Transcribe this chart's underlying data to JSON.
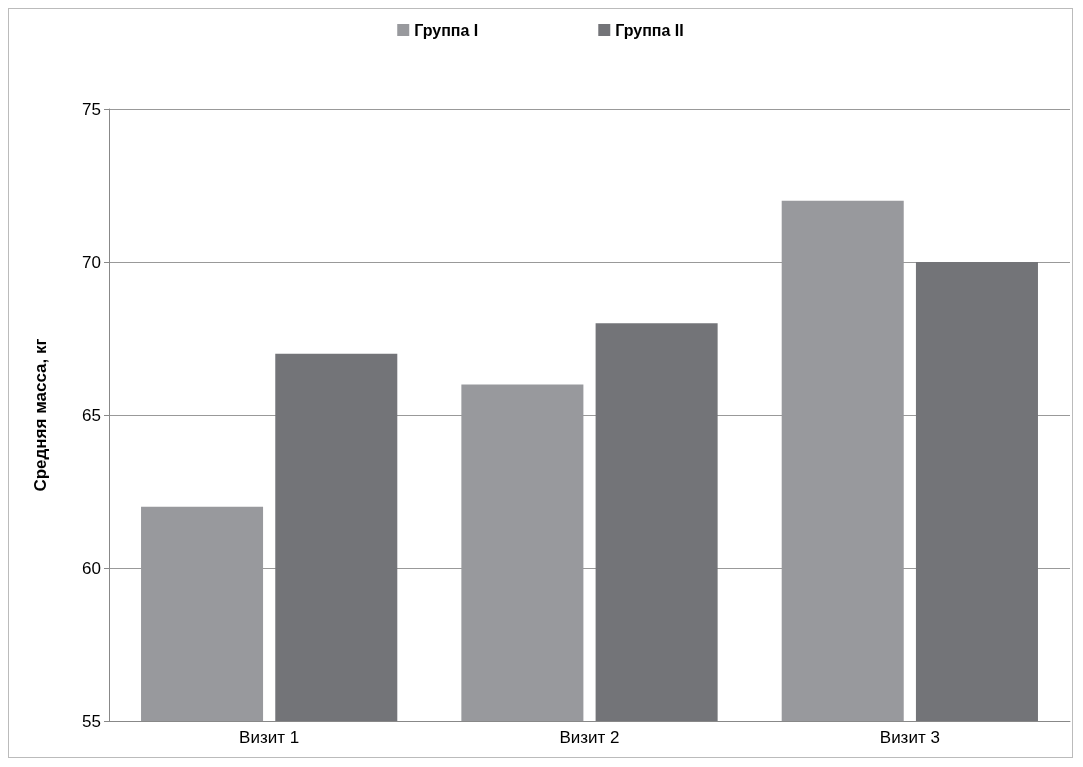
{
  "chart_data": {
    "type": "bar",
    "ylabel": "Средняя масса, кг",
    "categories": [
      "Визит 1",
      "Визит 2",
      "Визит 3"
    ],
    "series": [
      {
        "name": "Группа I",
        "color": "#98999d",
        "values": [
          62,
          66,
          72
        ]
      },
      {
        "name": "Группа II",
        "color": "#737478",
        "values": [
          67,
          68,
          70
        ]
      }
    ],
    "ylim": [
      55,
      75
    ],
    "yticks": [
      55,
      60,
      65,
      70,
      75
    ],
    "grid": "y",
    "legend": "top"
  }
}
